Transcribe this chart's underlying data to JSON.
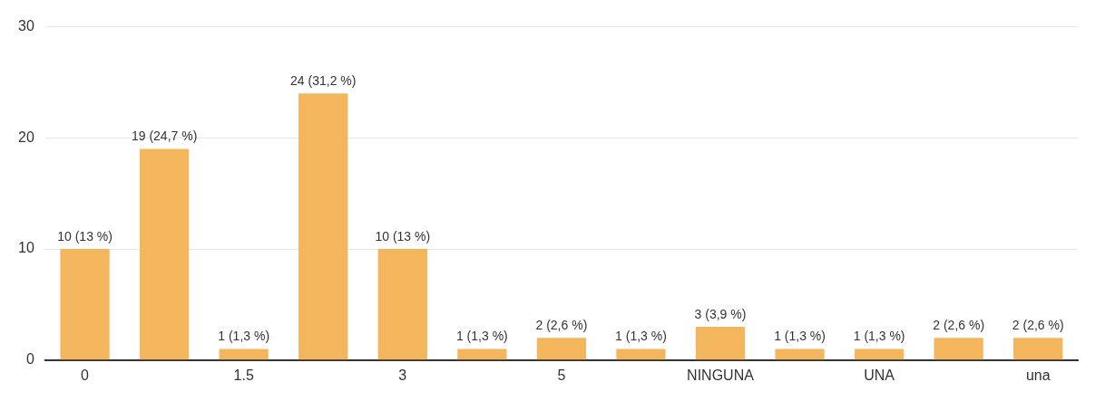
{
  "chart_data": {
    "type": "bar",
    "categories": [
      "0",
      null,
      "1.5",
      null,
      "3",
      null,
      "5",
      null,
      "NINGUNA",
      null,
      "UNA",
      null,
      "una"
    ],
    "values": [
      10,
      19,
      1,
      24,
      10,
      1,
      2,
      1,
      3,
      1,
      1,
      2,
      2
    ],
    "value_labels": [
      "10 (13 %)",
      "19 (24,7 %)",
      "1 (1,3 %)",
      "24 (31,2 %)",
      "10 (13 %)",
      "1 (1,3 %)",
      "2 (2,6 %)",
      "1 (1,3 %)",
      "3 (3,9 %)",
      "1 (1,3 %)",
      "1 (1,3 %)",
      "2 (2,6 %)",
      "2 (2,6 %)"
    ],
    "color": "#f4b65c",
    "ylim": [
      0,
      30
    ],
    "yticks": [
      0,
      10,
      20,
      30
    ],
    "grid": "y",
    "legend": false
  }
}
